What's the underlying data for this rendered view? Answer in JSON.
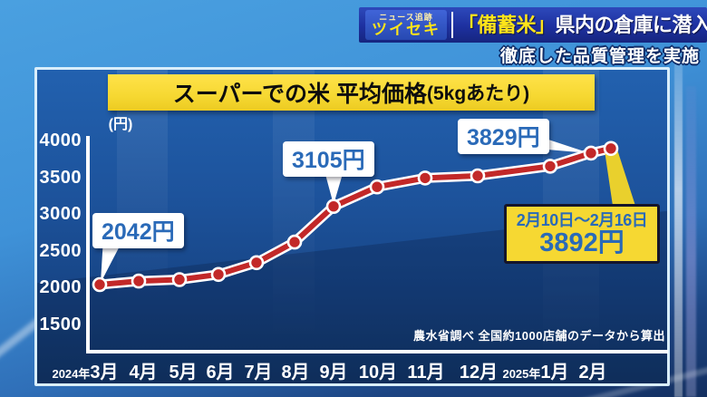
{
  "header": {
    "badge_top": "ニュース追跡",
    "badge_main": "ツイセキ",
    "headline_quoted": "「備蓄米」",
    "headline_rest": "県内の倉庫に潜入",
    "subheadline": "徹底した品質管理を実施"
  },
  "chart_data": {
    "type": "line",
    "title_main": "スーパーでの米 平均価格",
    "title_paren": "(5kgあたり)",
    "unit_label": "(円)",
    "ylim": [
      1500,
      4000
    ],
    "yticks": [
      4000,
      3500,
      3000,
      2500,
      2000,
      1500
    ],
    "categories": [
      "2024年3月",
      "4月",
      "5月",
      "6月",
      "7月",
      "8月",
      "9月",
      "10月",
      "11月",
      "12月",
      "2025年1月",
      "2月"
    ],
    "values": [
      2042,
      2090,
      2110,
      2180,
      2340,
      2620,
      3105,
      3370,
      3490,
      3520,
      3650,
      3829
    ],
    "extra_point": {
      "label": "2月10日〜2月16日",
      "value": 3892,
      "value_text": "3892円"
    },
    "annotations": [
      {
        "index": 0,
        "text": "2042円"
      },
      {
        "index": 6,
        "text": "3105円"
      },
      {
        "index": 11,
        "text": "3829円"
      }
    ],
    "x_labels": [
      {
        "year": "2024年",
        "month": "3月"
      },
      {
        "month": "4月"
      },
      {
        "month": "5月"
      },
      {
        "month": "6月"
      },
      {
        "month": "7月"
      },
      {
        "month": "8月"
      },
      {
        "month": "9月"
      },
      {
        "month": "10月"
      },
      {
        "month": "11月"
      },
      {
        "month": "12月"
      },
      {
        "year": "2025年",
        "month": "1月"
      },
      {
        "month": "2月"
      }
    ],
    "source": "農水省調べ 全国約1000店舗のデータから算出",
    "line_color": "#c22828",
    "point_color": "#c22828",
    "accent_yellow": "#f6d832",
    "callout_text_color": "#2a6ab8",
    "headline_yellow": "#ffe41a",
    "grid": false,
    "legend_position": "none"
  }
}
